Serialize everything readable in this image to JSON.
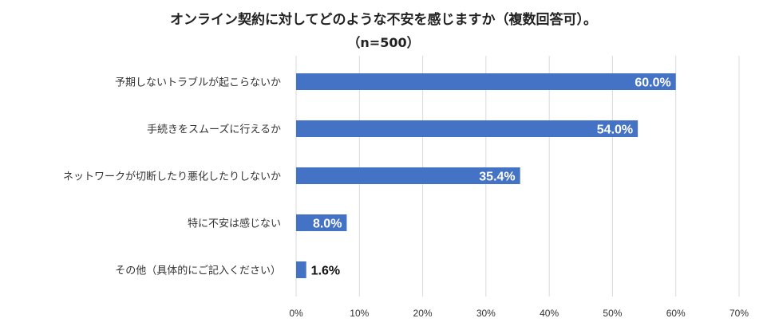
{
  "chart_data": {
    "type": "bar",
    "orientation": "horizontal",
    "title": "オンライン契約に対してどのような不安を感じますか（複数回答可）。",
    "subtitle": "（n=500）",
    "categories": [
      "予期しないトラブルが起こらないか",
      "手続きをスムーズに行えるか",
      "ネットワークが切断したり悪化したりしないか",
      "特に不安は感じない",
      "その他（具体的にご記入ください）"
    ],
    "values": [
      60.0,
      54.0,
      35.4,
      8.0,
      1.6
    ],
    "value_labels": [
      "60.0%",
      "54.0%",
      "35.4%",
      "8.0%",
      "1.6%"
    ],
    "xlim": [
      0,
      70
    ],
    "x_ticks": [
      "0%",
      "10%",
      "20%",
      "30%",
      "40%",
      "50%",
      "60%",
      "70%"
    ],
    "grid": true,
    "bar_color": "#4472C4"
  }
}
